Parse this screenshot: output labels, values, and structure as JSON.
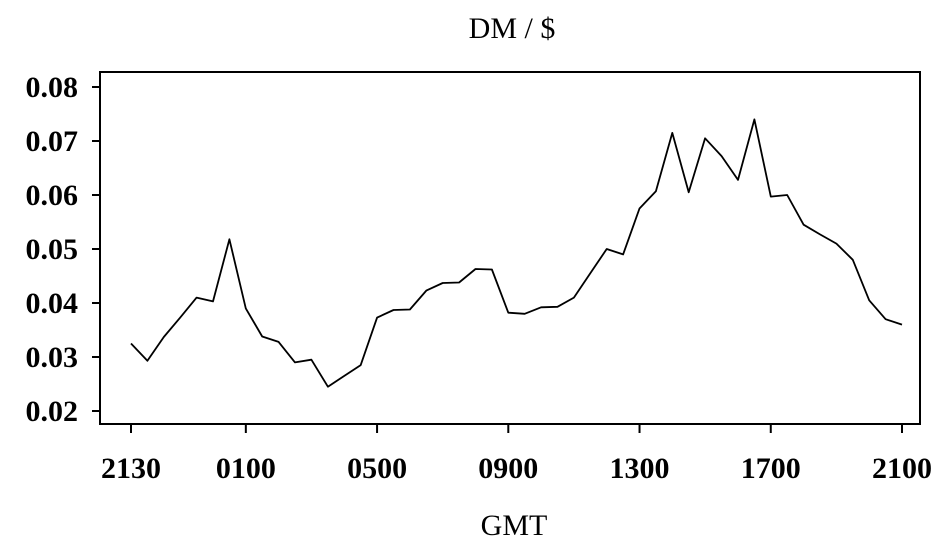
{
  "chart_data": {
    "type": "line",
    "title": "DM / $",
    "xlabel": "GMT",
    "ylabel": "",
    "ylim": [
      0.02,
      0.08
    ],
    "yticks": [
      "0.02",
      "0.03",
      "0.04",
      "0.05",
      "0.06",
      "0.07",
      "0.08"
    ],
    "xticks": [
      "2130",
      "0100",
      "0500",
      "0900",
      "1300",
      "1700",
      "2100"
    ],
    "x_axis_note": "x values are hours after 2130 GMT (one point per half hour)",
    "grid": false,
    "legend": "none",
    "colors": {
      "line": "#000000",
      "axes": "#000000",
      "background": "#ffffff"
    },
    "series": [
      {
        "x": [
          0,
          0.5,
          1,
          1.5,
          2,
          2.5,
          3,
          3.5,
          4,
          4.5,
          5,
          5.5,
          6,
          6.5,
          7,
          7.5,
          8,
          8.5,
          9,
          9.5,
          10,
          10.5,
          11,
          11.5,
          12,
          12.5,
          13,
          13.5,
          14,
          14.5,
          15,
          15.5,
          16,
          16.5,
          17,
          17.5,
          18,
          18.5,
          19,
          19.5,
          20,
          20.5,
          21,
          21.5,
          22,
          22.5,
          23,
          23.5
        ],
        "values": [
          0.0325,
          0.0293,
          0.0337,
          0.0373,
          0.041,
          0.0403,
          0.0518,
          0.039,
          0.0338,
          0.0328,
          0.029,
          0.0295,
          0.0245,
          0.0265,
          0.0285,
          0.0373,
          0.0387,
          0.0388,
          0.0423,
          0.0437,
          0.0438,
          0.0463,
          0.0462,
          0.0382,
          0.038,
          0.0392,
          0.0393,
          0.041,
          0.0455,
          0.05,
          0.049,
          0.0575,
          0.0607,
          0.0715,
          0.0605,
          0.0705,
          0.0672,
          0.0628,
          0.074,
          0.0597,
          0.06,
          0.0545,
          0.0527,
          0.051,
          0.048,
          0.0405,
          0.037,
          0.036
        ]
      }
    ]
  }
}
